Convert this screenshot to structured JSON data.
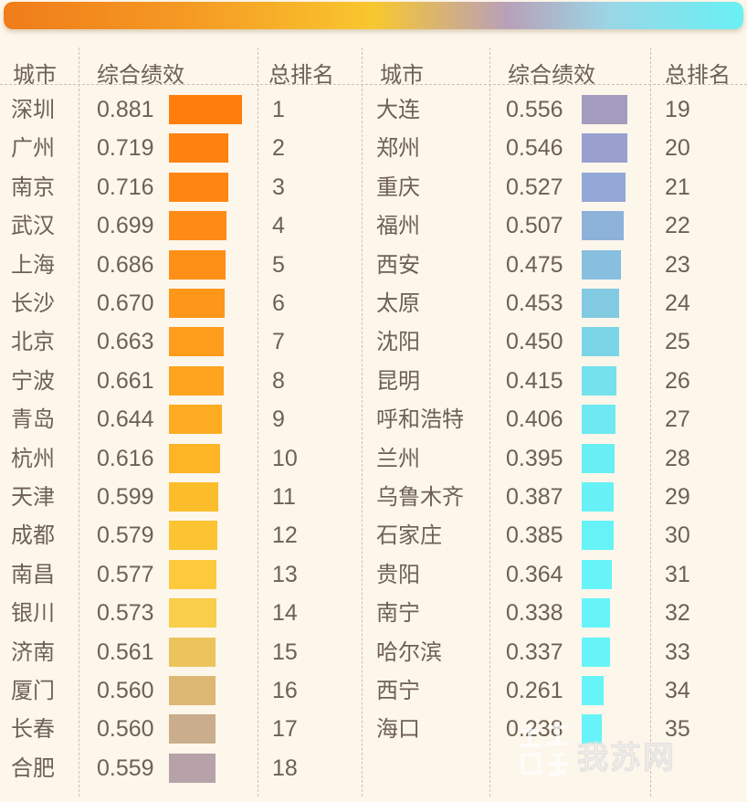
{
  "colors": {
    "banner_start": "#f07c1a",
    "banner_end": "#68f0f4",
    "background": "#fdf6ea",
    "text": "#6d6154"
  },
  "headers": {
    "left": {
      "city": "城市",
      "perf": "综合绩效",
      "rank": "总排名"
    },
    "right": {
      "city": "城市",
      "perf": "综合绩效",
      "rank": "总排名"
    }
  },
  "chart_data": {
    "type": "table",
    "columns": [
      "城市",
      "综合绩效",
      "总排名"
    ],
    "bar_max_value": 0.881,
    "rows": [
      {
        "city": "深圳",
        "value": "0.881",
        "rank": "1",
        "color": "#ff7d0c"
      },
      {
        "city": "广州",
        "value": "0.719",
        "rank": "2",
        "color": "#ff8210"
      },
      {
        "city": "南京",
        "value": "0.716",
        "rank": "3",
        "color": "#ff8613"
      },
      {
        "city": "武汉",
        "value": "0.699",
        "rank": "4",
        "color": "#ff8a15"
      },
      {
        "city": "上海",
        "value": "0.686",
        "rank": "5",
        "color": "#fe8f17"
      },
      {
        "city": "长沙",
        "value": "0.670",
        "rank": "6",
        "color": "#fe961a"
      },
      {
        "city": "北京",
        "value": "0.663",
        "rank": "7",
        "color": "#fe9c1c"
      },
      {
        "city": "宁波",
        "value": "0.661",
        "rank": "8",
        "color": "#fea41f"
      },
      {
        "city": "青岛",
        "value": "0.644",
        "rank": "9",
        "color": "#fdac22"
      },
      {
        "city": "杭州",
        "value": "0.616",
        "rank": "10",
        "color": "#fdb526"
      },
      {
        "city": "天津",
        "value": "0.599",
        "rank": "11",
        "color": "#fcbd2b"
      },
      {
        "city": "成都",
        "value": "0.579",
        "rank": "12",
        "color": "#fcc432"
      },
      {
        "city": "南昌",
        "value": "0.577",
        "rank": "13",
        "color": "#fcca3c"
      },
      {
        "city": "银川",
        "value": "0.573",
        "rank": "14",
        "color": "#f8ce4a"
      },
      {
        "city": "济南",
        "value": "0.561",
        "rank": "15",
        "color": "#ecc45d"
      },
      {
        "city": "厦门",
        "value": "0.560",
        "rank": "16",
        "color": "#dcb874"
      },
      {
        "city": "长春",
        "value": "0.560",
        "rank": "17",
        "color": "#c9ad8c"
      },
      {
        "city": "合肥",
        "value": "0.559",
        "rank": "18",
        "color": "#b6a2a8"
      },
      {
        "city": "大连",
        "value": "0.556",
        "rank": "19",
        "color": "#a39cbf"
      },
      {
        "city": "郑州",
        "value": "0.546",
        "rank": "20",
        "color": "#9a9fce"
      },
      {
        "city": "重庆",
        "value": "0.527",
        "rank": "21",
        "color": "#93a8d6"
      },
      {
        "city": "福州",
        "value": "0.507",
        "rank": "22",
        "color": "#8db2da"
      },
      {
        "city": "西安",
        "value": "0.475",
        "rank": "23",
        "color": "#88bede"
      },
      {
        "city": "太原",
        "value": "0.453",
        "rank": "24",
        "color": "#82cae2"
      },
      {
        "city": "沈阳",
        "value": "0.450",
        "rank": "25",
        "color": "#7cd5e7"
      },
      {
        "city": "昆明",
        "value": "0.415",
        "rank": "26",
        "color": "#74e1ed"
      },
      {
        "city": "呼和浩特",
        "value": "0.406",
        "rank": "27",
        "color": "#6ee9f1"
      },
      {
        "city": "兰州",
        "value": "0.395",
        "rank": "28",
        "color": "#69eef4"
      },
      {
        "city": "乌鲁木齐",
        "value": "0.387",
        "rank": "29",
        "color": "#67f1f6"
      },
      {
        "city": "石家庄",
        "value": "0.385",
        "rank": "30",
        "color": "#66f3f7"
      },
      {
        "city": "贵阳",
        "value": "0.364",
        "rank": "31",
        "color": "#66f4f8"
      },
      {
        "city": "南宁",
        "value": "0.338",
        "rank": "32",
        "color": "#66f4f8"
      },
      {
        "city": "哈尔滨",
        "value": "0.337",
        "rank": "33",
        "color": "#66f4f8"
      },
      {
        "city": "西宁",
        "value": "0.261",
        "rank": "34",
        "color": "#66f4f8"
      },
      {
        "city": "海口",
        "value": "0.238",
        "rank": "35",
        "color": "#66f4f8"
      }
    ]
  },
  "watermark": {
    "text": "我苏网",
    "icon_name": "xinhua-logo-icon"
  }
}
